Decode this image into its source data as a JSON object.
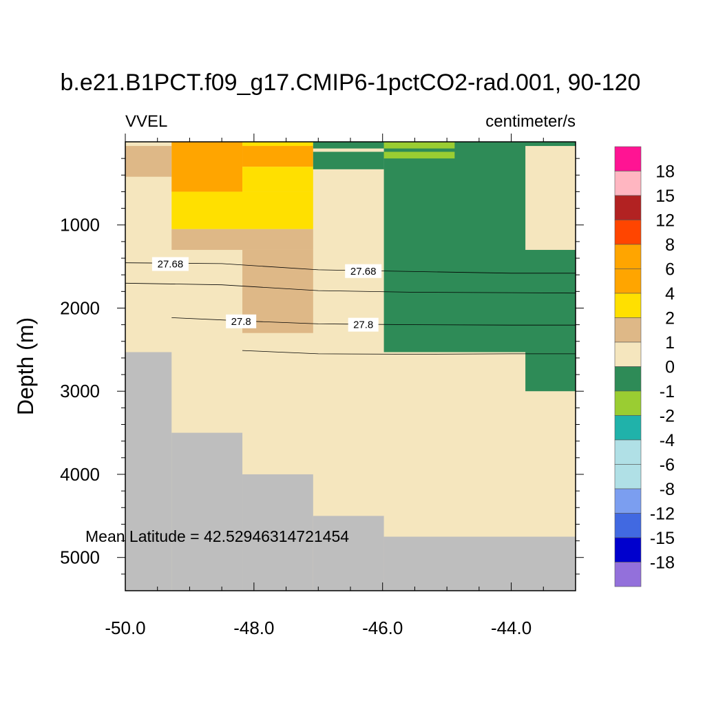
{
  "chart_data": {
    "type": "heatmap",
    "title": "b.e21.B1PCT.f09_g17.CMIP6-1pctCO2-rad.001, 90-120",
    "left_string": "VVEL",
    "right_string": "centimeter/s",
    "ylabel": "Depth (m)",
    "xlabel": "",
    "annotation": "Mean Latitude = 42.52946314721454",
    "xlim": [
      -50.0,
      -43.0
    ],
    "ylim": [
      5400,
      0
    ],
    "x_ticks": [
      -50.0,
      -48.0,
      -46.0,
      -44.0
    ],
    "x_tick_labels": [
      "-50.0",
      "-48.0",
      "-46.0",
      "-44.0"
    ],
    "y_ticks": [
      1000,
      2000,
      3000,
      4000,
      5000
    ],
    "y_tick_labels": [
      "1000",
      "2000",
      "3000",
      "4000",
      "5000"
    ],
    "land_color": "#bebebe",
    "colorbar": {
      "labels": [
        "18",
        "15",
        "12",
        "8",
        "6",
        "4",
        "2",
        "1",
        "0",
        "-1",
        "-2",
        "-4",
        "-6",
        "-8",
        "-12",
        "-15",
        "-18"
      ],
      "colors": [
        "#ff1493",
        "#ffb6c1",
        "#b22222",
        "#ff4500",
        "#ffa500",
        "#ffa500",
        "#ffe000",
        "#deb887",
        "#f5e6be",
        "#2e8b57",
        "#9acd32",
        "#20b2aa",
        "#b0e0e6",
        "#b0e0e6",
        "#7b9ef0",
        "#4169e1",
        "#0000cd",
        "#9370db"
      ]
    },
    "cells": [
      {
        "x0": -50.0,
        "x1": -43.0,
        "y0": 0,
        "y1": 5400,
        "color": "#f5e6be"
      },
      {
        "x0": -50.0,
        "x1": -49.28,
        "y0": 50,
        "y1": 420,
        "color": "#deb887"
      },
      {
        "x0": -49.28,
        "x1": -48.18,
        "y0": 0,
        "y1": 600,
        "color": "#ffa500"
      },
      {
        "x0": -49.28,
        "x1": -47.08,
        "y0": 600,
        "y1": 1050,
        "color": "#ffe000"
      },
      {
        "x0": -48.18,
        "x1": -47.08,
        "y0": 0,
        "y1": 50,
        "color": "#ffe000"
      },
      {
        "x0": -48.18,
        "x1": -47.08,
        "y0": 50,
        "y1": 300,
        "color": "#ffa500"
      },
      {
        "x0": -48.18,
        "x1": -47.08,
        "y0": 300,
        "y1": 600,
        "color": "#ffe000"
      },
      {
        "x0": -49.28,
        "x1": -47.08,
        "y0": 1050,
        "y1": 1300,
        "color": "#deb887"
      },
      {
        "x0": -48.18,
        "x1": -47.08,
        "y0": 1300,
        "y1": 2300,
        "color": "#deb887"
      },
      {
        "x0": -47.08,
        "x1": -45.98,
        "y0": 0,
        "y1": 80,
        "color": "#2e8b57"
      },
      {
        "x0": -47.08,
        "x1": -45.98,
        "y0": 120,
        "y1": 330,
        "color": "#2e8b57"
      },
      {
        "x0": -45.98,
        "x1": -43.0,
        "y0": 0,
        "y1": 2530,
        "color": "#2e8b57"
      },
      {
        "x0": -45.98,
        "x1": -44.88,
        "y0": 0,
        "y1": 80,
        "color": "#9acd32"
      },
      {
        "x0": -45.98,
        "x1": -44.88,
        "y0": 120,
        "y1": 200,
        "color": "#9acd32"
      },
      {
        "x0": -43.78,
        "x1": -43.0,
        "y0": 2530,
        "y1": 3000,
        "color": "#2e8b57"
      },
      {
        "x0": -43.78,
        "x1": -43.0,
        "y0": 50,
        "y1": 1300,
        "color": "#f5e6be"
      },
      {
        "x0": -50.0,
        "x1": -49.28,
        "y0": 2530,
        "y1": 5400,
        "color": "#bebebe"
      },
      {
        "x0": -49.28,
        "x1": -48.18,
        "y0": 3500,
        "y1": 5400,
        "color": "#bebebe"
      },
      {
        "x0": -48.18,
        "x1": -47.08,
        "y0": 4000,
        "y1": 5400,
        "color": "#bebebe"
      },
      {
        "x0": -47.08,
        "x1": -45.98,
        "y0": 4500,
        "y1": 5400,
        "color": "#bebebe"
      },
      {
        "x0": -45.98,
        "x1": -43.0,
        "y0": 4750,
        "y1": 5400,
        "color": "#bebebe"
      }
    ],
    "contours": [
      {
        "label": "27.68",
        "points": [
          [
            -50.0,
            1455
          ],
          [
            -48.5,
            1465
          ],
          [
            -47.0,
            1540
          ],
          [
            -45.5,
            1560
          ],
          [
            -44.0,
            1580
          ],
          [
            -43.0,
            1580
          ]
        ],
        "label_positions": [
          [
            -49.3,
            1470
          ],
          [
            -46.3,
            1555
          ]
        ]
      },
      {
        "label": "",
        "points": [
          [
            -50.0,
            1700
          ],
          [
            -48.5,
            1720
          ],
          [
            -47.0,
            1790
          ],
          [
            -45.5,
            1810
          ],
          [
            -44.0,
            1815
          ],
          [
            -43.0,
            1820
          ]
        ],
        "label_positions": []
      },
      {
        "label": "27.8",
        "points": [
          [
            -49.28,
            2115
          ],
          [
            -48.0,
            2160
          ],
          [
            -47.0,
            2190
          ],
          [
            -45.5,
            2200
          ],
          [
            -44.0,
            2205
          ],
          [
            -43.0,
            2205
          ]
        ],
        "label_positions": [
          [
            -48.2,
            2160
          ],
          [
            -46.3,
            2200
          ]
        ]
      },
      {
        "label": "",
        "points": [
          [
            -48.18,
            2510
          ],
          [
            -47.0,
            2550
          ],
          [
            -45.5,
            2555
          ],
          [
            -44.0,
            2550
          ],
          [
            -43.0,
            2550
          ]
        ],
        "label_positions": []
      }
    ]
  }
}
